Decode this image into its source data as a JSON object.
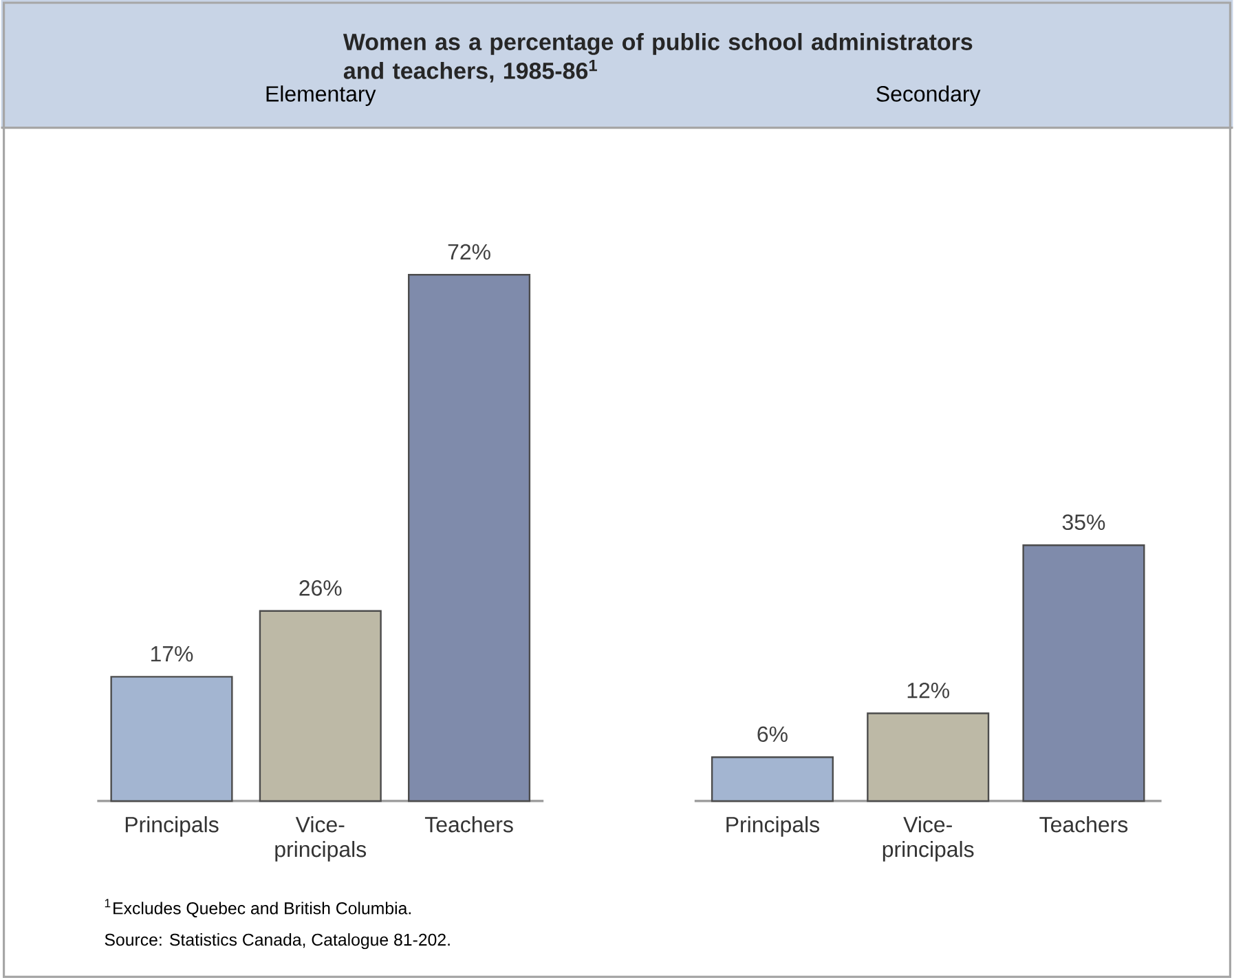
{
  "chart_data": [
    {
      "type": "bar",
      "title": "Elementary",
      "categories": [
        "Principals",
        "Vice-principals",
        "Teachers"
      ],
      "values": [
        17,
        26,
        72
      ],
      "value_labels": [
        "17%",
        "26%",
        "72%"
      ],
      "colors": [
        "#a3b5d1",
        "#bdb9a6",
        "#7f8bab"
      ],
      "annotations": [
        "Women as a percentage of public school administrators and teachers, 1985-86$^{1}$",
        "$^{1}$Excludes Quebec and British Columbia.",
        "Source: Statistics Canada, Catalogue 81-202."
      ]
    },
    {
      "type": "bar",
      "title": "Secondary",
      "categories": [
        "Principals",
        "Vice-principals",
        "Teachers"
      ],
      "values": [
        6,
        12,
        35
      ],
      "value_labels": [
        "6%",
        "12%",
        "35%"
      ],
      "colors": [
        "#a3b5d1",
        "#bdb9a6",
        "#7f8bab"
      ]
    }
  ]
}
